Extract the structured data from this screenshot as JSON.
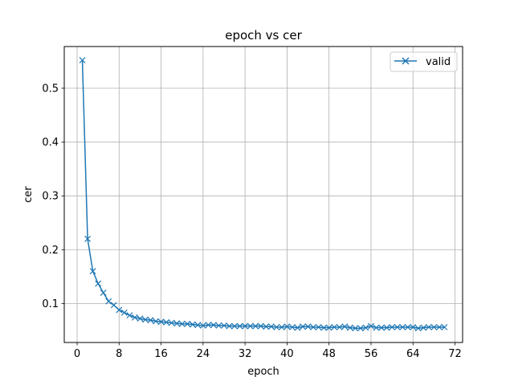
{
  "chart_data": {
    "type": "line",
    "title": "epoch vs cer",
    "xlabel": "epoch",
    "ylabel": "cer",
    "xlim": [
      -2.45,
      73.45
    ],
    "ylim": [
      0.0275,
      0.5775
    ],
    "xticks": [
      0,
      8,
      16,
      24,
      32,
      40,
      48,
      56,
      64,
      72
    ],
    "yticks": [
      0.1,
      0.2,
      0.3,
      0.4,
      0.5
    ],
    "ytick_labels": [
      "0.1",
      "0.2",
      "0.3",
      "0.4",
      "0.5"
    ],
    "grid": true,
    "legend_position": "top-right",
    "series": [
      {
        "name": "valid",
        "color": "#1f77b4",
        "marker": "x",
        "x": [
          1,
          2,
          3,
          4,
          5,
          6,
          7,
          8,
          9,
          10,
          11,
          12,
          13,
          14,
          15,
          16,
          17,
          18,
          19,
          20,
          21,
          22,
          23,
          24,
          25,
          26,
          27,
          28,
          29,
          30,
          31,
          32,
          33,
          34,
          35,
          36,
          37,
          38,
          39,
          40,
          41,
          42,
          43,
          44,
          45,
          46,
          47,
          48,
          49,
          50,
          51,
          52,
          53,
          54,
          55,
          56,
          57,
          58,
          59,
          60,
          61,
          62,
          63,
          64,
          65,
          66,
          67,
          68,
          69,
          70
        ],
        "y": [
          0.552,
          0.22,
          0.16,
          0.137,
          0.12,
          0.104,
          0.097,
          0.088,
          0.083,
          0.078,
          0.074,
          0.072,
          0.07,
          0.069,
          0.067,
          0.066,
          0.065,
          0.064,
          0.063,
          0.062,
          0.062,
          0.061,
          0.06,
          0.059,
          0.06,
          0.06,
          0.059,
          0.059,
          0.058,
          0.058,
          0.058,
          0.058,
          0.058,
          0.058,
          0.058,
          0.057,
          0.057,
          0.056,
          0.056,
          0.057,
          0.056,
          0.055,
          0.057,
          0.057,
          0.056,
          0.056,
          0.055,
          0.055,
          0.056,
          0.056,
          0.057,
          0.055,
          0.054,
          0.054,
          0.055,
          0.058,
          0.055,
          0.055,
          0.055,
          0.056,
          0.056,
          0.056,
          0.056,
          0.056,
          0.054,
          0.055,
          0.056,
          0.056,
          0.056,
          0.056
        ]
      }
    ]
  }
}
